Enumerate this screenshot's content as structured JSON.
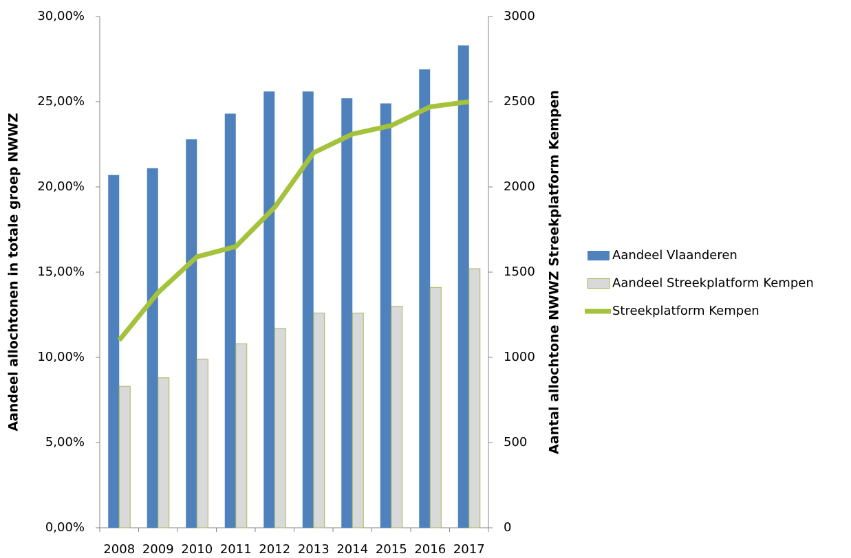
{
  "chart_data": {
    "type": "bar",
    "y_label": "Aandeel allochtonen in totale groep NWWZ",
    "y2_label": "Aantal allochtone NWWZ Streekplatform Kempen",
    "categories": [
      "2008",
      "2009",
      "2010",
      "2011",
      "2012",
      "2013",
      "2014",
      "2015",
      "2016",
      "2017"
    ],
    "series": [
      {
        "name": "Aandeel Vlaanderen",
        "type": "bar",
        "color": "#4f81bd",
        "values": [
          20.7,
          21.1,
          22.8,
          24.3,
          25.6,
          25.6,
          25.2,
          24.9,
          26.9,
          28.3
        ]
      },
      {
        "name": "Aandeel Streekplatform Kempen",
        "type": "bar",
        "color": "#d9d9d9",
        "values": [
          8.3,
          8.8,
          9.9,
          10.8,
          11.7,
          12.6,
          12.6,
          13.0,
          14.1,
          15.2
        ]
      },
      {
        "name": "Streekplatform Kempen",
        "type": "line",
        "axis": "y2",
        "color": "#a4c23b",
        "values": [
          1100,
          1380,
          1590,
          1650,
          1880,
          2200,
          2310,
          2360,
          2470,
          2500
        ]
      }
    ],
    "ylim": [
      0,
      30
    ],
    "yticks": [
      {
        "value": 0,
        "label": "0,00%"
      },
      {
        "value": 5,
        "label": "5,00%"
      },
      {
        "value": 10,
        "label": "10,00%"
      },
      {
        "value": 15,
        "label": "15,00%"
      },
      {
        "value": 20,
        "label": "20,00%"
      },
      {
        "value": 25,
        "label": "25,00%"
      },
      {
        "value": 30,
        "label": "30,00%"
      }
    ],
    "y2lim": [
      0,
      3000
    ],
    "y2ticks": [
      0,
      500,
      1000,
      1500,
      2000,
      2500,
      3000
    ],
    "grid": false,
    "legend": "right"
  }
}
